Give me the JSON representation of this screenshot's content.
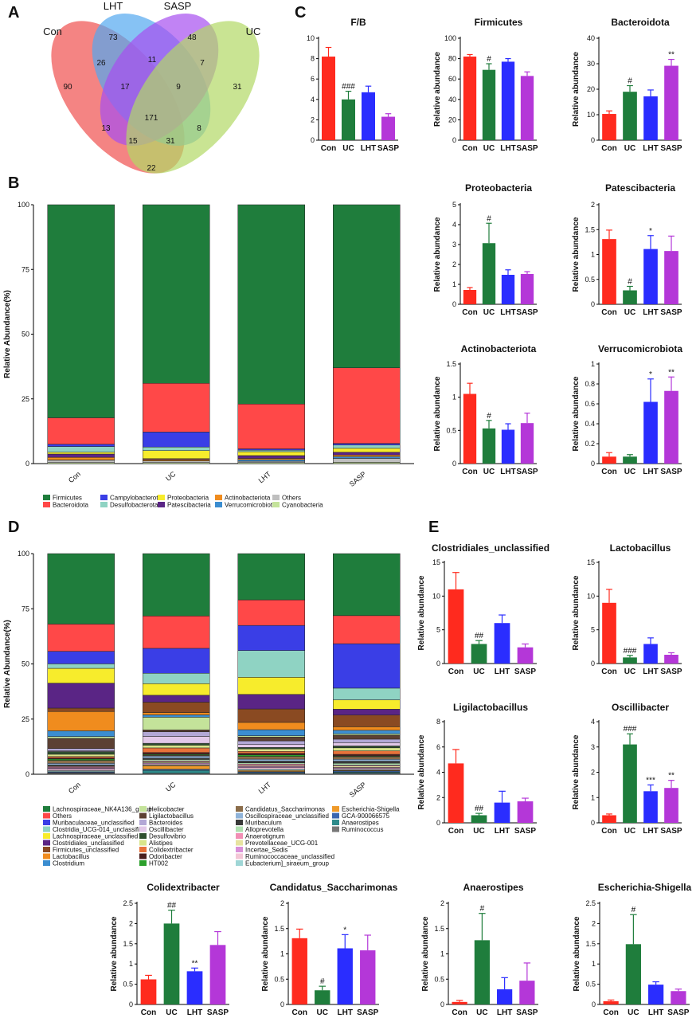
{
  "panel_letters": [
    "A",
    "B",
    "C",
    "D",
    "E"
  ],
  "colors": {
    "Con": "#ff2a1e",
    "UC": "#1f7d3c",
    "LHT": "#2a2dff",
    "SASP": "#b437d8"
  },
  "chart_data": [
    {
      "id": "A",
      "type": "venn",
      "sets": [
        "Con",
        "LHT",
        "SASP",
        "UC"
      ],
      "set_colors": [
        "#f0504f",
        "#52a8f0",
        "#a74ff0",
        "#b2d965"
      ],
      "counts": [
        {
          "region": "Con only",
          "value": 90
        },
        {
          "region": "LHT only",
          "value": 73
        },
        {
          "region": "SASP only",
          "value": 48
        },
        {
          "region": "UC only",
          "value": 31
        },
        {
          "region": "Con∩LHT",
          "value": 26
        },
        {
          "region": "LHT∩SASP",
          "value": 11
        },
        {
          "region": "SASP∩UC",
          "value": 7
        },
        {
          "region": "Con∩LHT∩SASP",
          "value": 17
        },
        {
          "region": "LHT∩SASP∩UC",
          "value": 9
        },
        {
          "region": "Con∩SASP",
          "value": 13
        },
        {
          "region": "all",
          "value": 171
        },
        {
          "region": "LHT∩UC",
          "value": 8
        },
        {
          "region": "Con∩SASP∩UC",
          "value": 15
        },
        {
          "region": "Con∩LHT∩UC",
          "value": 31
        },
        {
          "region": "Con∩UC",
          "value": 22
        }
      ]
    },
    {
      "id": "B",
      "type": "stacked_bar",
      "ylabel": "Relative Abundance(%)",
      "ylim": [
        0,
        100
      ],
      "yticks": [
        0,
        25,
        50,
        75,
        100
      ],
      "categories": [
        "Con",
        "UC",
        "LHT",
        "SASP"
      ],
      "series": [
        {
          "name": "Firmicutes",
          "color": "#1f7d3c",
          "values": [
            82.3,
            69.0,
            77.0,
            63.0
          ]
        },
        {
          "name": "Bacteroidota",
          "color": "#ff4848",
          "values": [
            10.2,
            18.8,
            17.3,
            29.2
          ]
        },
        {
          "name": "Campylobacterota",
          "color": "#3a3ee6",
          "values": [
            0.9,
            5.8,
            0.5,
            0.6
          ]
        },
        {
          "name": "Desulfobacterota",
          "color": "#8fd3c3",
          "values": [
            2.2,
            1.4,
            0.6,
            1.3
          ]
        },
        {
          "name": "Proteobacteria",
          "color": "#f7ec2c",
          "values": [
            0.7,
            3.1,
            1.5,
            1.5
          ]
        },
        {
          "name": "Patescibacteria",
          "color": "#5a2585",
          "values": [
            1.3,
            0.3,
            1.1,
            1.1
          ]
        },
        {
          "name": "Actinobacteriota",
          "color": "#f08c1e",
          "values": [
            1.0,
            0.5,
            0.5,
            0.6
          ]
        },
        {
          "name": "Verrucomicrobiota",
          "color": "#3b8dd0",
          "values": [
            0.1,
            0.1,
            0.6,
            0.7
          ]
        },
        {
          "name": "Others",
          "color": "#bfbfbf",
          "values": [
            0.9,
            0.6,
            0.5,
            1.5
          ]
        },
        {
          "name": "Cyanobacteria",
          "color": "#c4e39a",
          "values": [
            0.4,
            0.4,
            0.4,
            0.5
          ]
        }
      ]
    },
    {
      "id": "D",
      "type": "stacked_bar",
      "ylabel": "Relative Abundance(%)",
      "ylim": [
        0,
        100
      ],
      "yticks": [
        0,
        25,
        50,
        75,
        100
      ],
      "categories": [
        "Con",
        "UC",
        "LHT",
        "SASP"
      ],
      "series": [
        {
          "name": "Lachnospiraceae_NK4A136_group",
          "color": "#1f7d3c",
          "values": [
            31.0,
            27.0,
            19.0,
            26.5
          ]
        },
        {
          "name": "Others",
          "color": "#ff4848",
          "values": [
            12.0,
            14.0,
            10.5,
            12.0
          ]
        },
        {
          "name": "Muribaculaceae_unclassified",
          "color": "#3a3ee6",
          "values": [
            5.5,
            10.8,
            10.3,
            19.0
          ]
        },
        {
          "name": "Clostridia_UCG-014_unclassified",
          "color": "#8fd3c3",
          "values": [
            2.0,
            4.5,
            11.0,
            5.0
          ]
        },
        {
          "name": "Lachnospiraceae_unclassified",
          "color": "#f7ec2c",
          "values": [
            6.5,
            5.0,
            7.0,
            4.0
          ]
        },
        {
          "name": "Clostridiales_unclassified",
          "color": "#5a2585",
          "values": [
            11.0,
            3.0,
            6.0,
            2.5
          ]
        },
        {
          "name": "Firmicutes_unclassified",
          "color": "#8a4a22",
          "values": [
            1.5,
            4.5,
            5.5,
            5.0
          ]
        },
        {
          "name": "Lactobacillus",
          "color": "#f08c1e",
          "values": [
            8.5,
            1.0,
            3.0,
            1.5
          ]
        },
        {
          "name": "Clostridium",
          "color": "#3b8dd0",
          "values": [
            2.5,
            1.0,
            2.5,
            1.5
          ]
        },
        {
          "name": "Helicobacter",
          "color": "#c4e39a",
          "values": [
            0.8,
            5.5,
            0.5,
            0.6
          ]
        },
        {
          "name": "Ligilactobacillus",
          "color": "#5c4033",
          "values": [
            4.5,
            0.8,
            1.6,
            1.7
          ]
        },
        {
          "name": "Bacteroides",
          "color": "#b3a8d6",
          "values": [
            1.0,
            2.0,
            1.5,
            1.5
          ]
        },
        {
          "name": "Oscillibacter",
          "color": "#e2c8e8",
          "values": [
            0.3,
            3.0,
            1.2,
            1.4
          ]
        },
        {
          "name": "Desulfovibrio",
          "color": "#2f4f2f",
          "values": [
            1.2,
            0.8,
            0.6,
            0.8
          ]
        },
        {
          "name": "Alistipes",
          "color": "#d9e58a",
          "values": [
            1.0,
            1.2,
            1.0,
            1.3
          ]
        },
        {
          "name": "Colidextribacter",
          "color": "#e8723a",
          "values": [
            0.6,
            2.0,
            0.8,
            1.5
          ]
        },
        {
          "name": "Odoribacter",
          "color": "#4a1f1f",
          "values": [
            0.5,
            0.8,
            0.6,
            0.7
          ]
        },
        {
          "name": "HT002",
          "color": "#2ca02c",
          "values": [
            0.6,
            0.4,
            0.7,
            0.3
          ]
        },
        {
          "name": "Candidatus_Saccharimonas",
          "color": "#8b6d4a",
          "values": [
            1.3,
            0.3,
            1.1,
            1.1
          ]
        },
        {
          "name": "Oscillospiraceae_unclassified",
          "color": "#8fb3d9",
          "values": [
            0.7,
            0.9,
            0.8,
            0.8
          ]
        },
        {
          "name": "Muribaculum",
          "color": "#3a3a3a",
          "values": [
            0.4,
            0.6,
            0.7,
            0.9
          ]
        },
        {
          "name": "Alloprevotella",
          "color": "#b0e0b0",
          "values": [
            0.3,
            0.6,
            0.5,
            0.8
          ]
        },
        {
          "name": "Anaerotignum",
          "color": "#f28fb5",
          "values": [
            0.5,
            0.4,
            0.6,
            0.4
          ]
        },
        {
          "name": "Prevotellaceae_UCG-001",
          "color": "#e7e3a0",
          "values": [
            0.2,
            0.5,
            0.4,
            0.6
          ]
        },
        {
          "name": "Incertae_Sedis",
          "color": "#d98fd9",
          "values": [
            0.5,
            0.4,
            0.5,
            0.4
          ]
        },
        {
          "name": "Ruminococcaceae_unclassified",
          "color": "#f3c6d6",
          "values": [
            0.6,
            0.5,
            0.6,
            0.5
          ]
        },
        {
          "name": "Eubacterium]_siraeum_group",
          "color": "#9fd6d6",
          "values": [
            0.5,
            0.3,
            0.5,
            0.3
          ]
        },
        {
          "name": "Escherichia-Shigella",
          "color": "#ef9a2a",
          "values": [
            0.1,
            1.5,
            0.5,
            0.3
          ]
        },
        {
          "name": "GCA-900066575",
          "color": "#3a66b0",
          "values": [
            0.4,
            0.5,
            0.4,
            0.5
          ]
        },
        {
          "name": "Anaerostipes",
          "color": "#2e8b8b",
          "values": [
            0.1,
            1.3,
            0.3,
            0.5
          ]
        },
        {
          "name": "Ruminococcus",
          "color": "#777777",
          "values": [
            0.5,
            0.4,
            0.4,
            0.4
          ]
        }
      ]
    },
    {
      "id": "C-FB",
      "type": "bar",
      "title": "F/B",
      "ylabel": "",
      "categories": [
        "Con",
        "UC",
        "LHT",
        "SASP"
      ],
      "values": [
        8.2,
        4.0,
        4.7,
        2.3
      ],
      "errors": [
        0.9,
        0.8,
        0.6,
        0.3
      ],
      "annotations": [
        "",
        "###",
        "",
        ""
      ],
      "ylim": [
        0,
        10
      ],
      "yticks": [
        0,
        2,
        4,
        6,
        8,
        10
      ]
    },
    {
      "id": "C-Firmicutes",
      "type": "bar",
      "title": "Firmicutes",
      "ylabel": "Relative abundance",
      "categories": [
        "Con",
        "UC",
        "LHT",
        "SASP"
      ],
      "values": [
        82,
        69,
        77,
        63
      ],
      "errors": [
        2,
        6,
        3,
        4
      ],
      "annotations": [
        "",
        "#",
        "",
        ""
      ],
      "ylim": [
        0,
        100
      ],
      "yticks": [
        0,
        20,
        40,
        60,
        80,
        100
      ]
    },
    {
      "id": "C-Bacteroidota",
      "type": "bar",
      "title": "Bacteroidota",
      "ylabel": "Relative abundance",
      "categories": [
        "Con",
        "UC",
        "LHT",
        "SASP"
      ],
      "values": [
        10.3,
        19.0,
        17.2,
        29.2
      ],
      "errors": [
        1.2,
        2.4,
        2.5,
        2.5
      ],
      "annotations": [
        "",
        "#",
        "",
        "**"
      ],
      "ylim": [
        0,
        40
      ],
      "yticks": [
        0,
        10,
        20,
        30,
        40
      ]
    },
    {
      "id": "C-Proteobacteria",
      "type": "bar",
      "title": "Proteobacteria",
      "ylabel": "Relative abundance",
      "categories": [
        "Con",
        "UC",
        "LHT",
        "SASP"
      ],
      "values": [
        0.72,
        3.07,
        1.48,
        1.52
      ],
      "errors": [
        0.12,
        1.0,
        0.25,
        0.12
      ],
      "annotations": [
        "",
        "#",
        "",
        ""
      ],
      "ylim": [
        0,
        5
      ],
      "yticks": [
        0,
        1,
        2,
        3,
        4,
        5
      ]
    },
    {
      "id": "C-Patescibacteria",
      "type": "bar",
      "title": "Patescibacteria",
      "ylabel": "Relative abundance",
      "categories": [
        "Con",
        "UC",
        "LHT",
        "SASP"
      ],
      "values": [
        1.31,
        0.28,
        1.11,
        1.07
      ],
      "errors": [
        0.18,
        0.08,
        0.27,
        0.3
      ],
      "annotations": [
        "",
        "#",
        "*",
        ""
      ],
      "ylim": [
        0,
        2.0
      ],
      "yticks": [
        0,
        0.5,
        1.0,
        1.5,
        2.0
      ]
    },
    {
      "id": "C-Actinobacteriota",
      "type": "bar",
      "title": "Actinobacteriota",
      "ylabel": "Relative abundance",
      "categories": [
        "Con",
        "UC",
        "LHT",
        "SASP"
      ],
      "values": [
        1.05,
        0.53,
        0.51,
        0.61
      ],
      "errors": [
        0.16,
        0.12,
        0.09,
        0.15
      ],
      "annotations": [
        "",
        "#",
        "",
        ""
      ],
      "ylim": [
        0,
        1.5
      ],
      "yticks": [
        0,
        0.5,
        1.0,
        1.5
      ]
    },
    {
      "id": "C-Verrucomicrobiota",
      "type": "bar",
      "title": "Verrucomicrobiota",
      "ylabel": "Relative abundance",
      "categories": [
        "Con",
        "UC",
        "LHT",
        "SASP"
      ],
      "values": [
        0.07,
        0.07,
        0.62,
        0.73
      ],
      "errors": [
        0.04,
        0.02,
        0.23,
        0.14
      ],
      "annotations": [
        "",
        "",
        "*",
        "**"
      ],
      "ylim": [
        0,
        1.0
      ],
      "yticks": [
        0,
        0.2,
        0.4,
        0.6,
        0.8,
        1.0
      ]
    },
    {
      "id": "E-Clostridiales",
      "type": "bar",
      "title": "Clostridiales_unclassified",
      "ylabel": "Relative abundance",
      "categories": [
        "Con",
        "UC",
        "LHT",
        "SASP"
      ],
      "values": [
        11.0,
        2.9,
        6.0,
        2.4
      ],
      "errors": [
        2.5,
        0.5,
        1.2,
        0.5
      ],
      "annotations": [
        "",
        "##",
        "",
        ""
      ],
      "ylim": [
        0,
        15
      ],
      "yticks": [
        0,
        5,
        10,
        15
      ]
    },
    {
      "id": "E-Lactobacillus",
      "type": "bar",
      "title": "Lactobacillus",
      "ylabel": "Relative abundance",
      "categories": [
        "Con",
        "UC",
        "LHT",
        "SASP"
      ],
      "values": [
        9.0,
        0.9,
        2.9,
        1.3
      ],
      "errors": [
        2.0,
        0.3,
        0.9,
        0.3
      ],
      "annotations": [
        "",
        "###",
        "",
        ""
      ],
      "ylim": [
        0,
        15
      ],
      "yticks": [
        0,
        5,
        10,
        15
      ]
    },
    {
      "id": "E-Ligilactobacillus",
      "type": "bar",
      "title": "Ligilactobacillus",
      "ylabel": "Relative abundance",
      "categories": [
        "Con",
        "UC",
        "LHT",
        "SASP"
      ],
      "values": [
        4.7,
        0.6,
        1.6,
        1.7
      ],
      "errors": [
        1.1,
        0.15,
        0.9,
        0.25
      ],
      "annotations": [
        "",
        "##",
        "",
        ""
      ],
      "ylim": [
        0,
        8
      ],
      "yticks": [
        0,
        2,
        4,
        6,
        8
      ]
    },
    {
      "id": "E-Oscillibacter",
      "type": "bar",
      "title": "Oscillibacter",
      "ylabel": "Relative abundance",
      "categories": [
        "Con",
        "UC",
        "LHT",
        "SASP"
      ],
      "values": [
        0.3,
        3.1,
        1.25,
        1.38
      ],
      "errors": [
        0.05,
        0.42,
        0.25,
        0.3
      ],
      "annotations": [
        "",
        "###",
        "***",
        "**"
      ],
      "ylim": [
        0,
        4
      ],
      "yticks": [
        0,
        1,
        2,
        3,
        4
      ]
    },
    {
      "id": "E-Colidextribacter",
      "type": "bar",
      "title": "Colidextribacter",
      "ylabel": "Relative abundance",
      "categories": [
        "Con",
        "UC",
        "LHT",
        "SASP"
      ],
      "values": [
        0.62,
        2.0,
        0.82,
        1.47
      ],
      "errors": [
        0.1,
        0.33,
        0.08,
        0.33
      ],
      "annotations": [
        "",
        "##",
        "**",
        ""
      ],
      "ylim": [
        0,
        2.5
      ],
      "yticks": [
        0,
        0.5,
        1.0,
        1.5,
        2.0,
        2.5
      ]
    },
    {
      "id": "E-Saccharimonas",
      "type": "bar",
      "title": "Candidatus_Saccharimonas",
      "ylabel": "Relative abundance",
      "categories": [
        "Con",
        "UC",
        "LHT",
        "SASP"
      ],
      "values": [
        1.31,
        0.28,
        1.11,
        1.07
      ],
      "errors": [
        0.18,
        0.08,
        0.27,
        0.3
      ],
      "annotations": [
        "",
        "#",
        "*",
        ""
      ],
      "ylim": [
        0,
        2.0
      ],
      "yticks": [
        0,
        0.5,
        1.0,
        1.5,
        2.0
      ]
    },
    {
      "id": "E-Anaerostipes",
      "type": "bar",
      "title": "Anaerostipes",
      "ylabel": "Relative abundance",
      "categories": [
        "Con",
        "UC",
        "LHT",
        "SASP"
      ],
      "values": [
        0.05,
        1.27,
        0.3,
        0.47
      ],
      "errors": [
        0.03,
        0.53,
        0.23,
        0.35
      ],
      "annotations": [
        "",
        "#",
        "",
        ""
      ],
      "ylim": [
        0,
        2.0
      ],
      "yticks": [
        0,
        0.5,
        1.0,
        1.5,
        2.0
      ]
    },
    {
      "id": "E-Escherichia",
      "type": "bar",
      "title": "Escherichia-Shigella",
      "ylabel": "Relative abundance",
      "categories": [
        "Con",
        "UC",
        "LHT",
        "SASP"
      ],
      "values": [
        0.08,
        1.49,
        0.49,
        0.33
      ],
      "errors": [
        0.03,
        0.73,
        0.07,
        0.05
      ],
      "annotations": [
        "",
        "#",
        "",
        ""
      ],
      "ylim": [
        0,
        2.5
      ],
      "yticks": [
        0,
        0.5,
        1.0,
        1.5,
        2.0,
        2.5
      ]
    }
  ]
}
